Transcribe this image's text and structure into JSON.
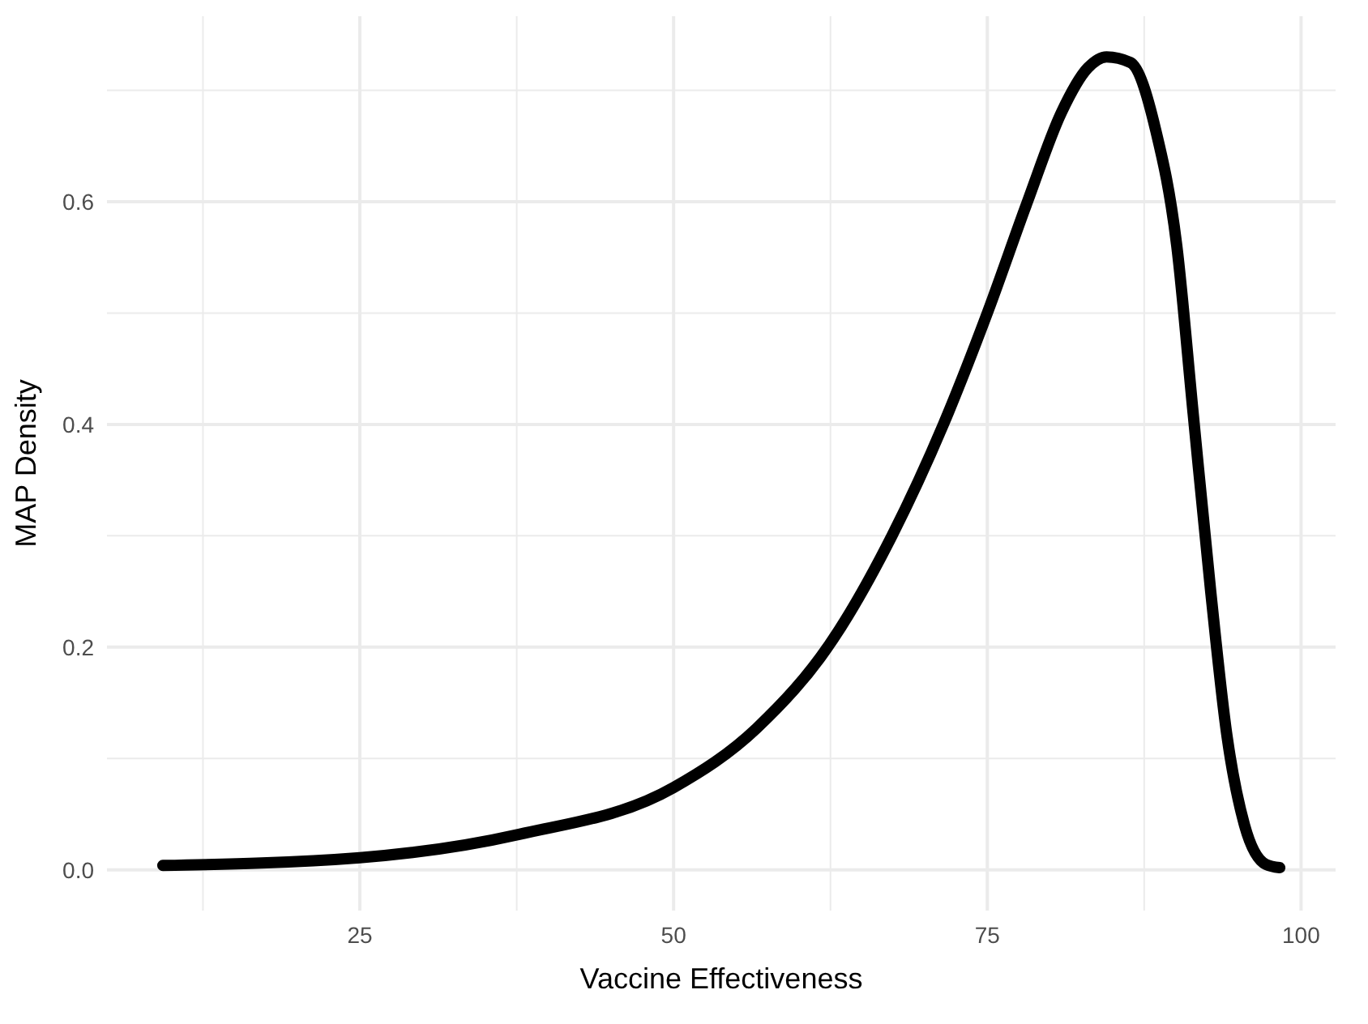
{
  "chart_data": {
    "type": "line",
    "xlabel": "Vaccine Effectiveness",
    "ylabel": "MAP Density",
    "xlim": [
      4.85,
      102.75
    ],
    "ylim": [
      -0.0365,
      0.7665
    ],
    "xticks": [
      {
        "value": 12.5,
        "label": null
      },
      25,
      {
        "value": 37.5,
        "label": null
      },
      50,
      {
        "value": 62.5,
        "label": null
      },
      75,
      {
        "value": 87.5,
        "label": null
      },
      100
    ],
    "yticks": [
      "0.0",
      {
        "value": 0.1,
        "label": null
      },
      {
        "value": 0.2,
        "label": "0.2"
      },
      {
        "value": 0.3,
        "label": null
      },
      {
        "value": 0.4,
        "label": "0.4"
      },
      {
        "value": 0.5,
        "label": null
      },
      {
        "value": 0.6,
        "label": "0.6"
      },
      {
        "value": 0.7,
        "label": null
      }
    ],
    "grid": true,
    "line_style": "solid",
    "marker": "none",
    "series": [
      {
        "color": "#000000",
        "x": [
          9.3,
          25,
          37.7,
          50,
          56.6,
          62.7,
          67.4,
          71.5,
          75,
          78.2,
          80.9,
          83,
          84.5,
          86.4,
          88.4,
          90.1,
          91.4,
          92.8,
          94.1,
          95.5,
          97.2,
          98.3
        ],
        "values": [
          0.004,
          0.011,
          0.032,
          0.074,
          0.127,
          0.207,
          0.3,
          0.4,
          0.5,
          0.6,
          0.68,
          0.72,
          0.73,
          0.725,
          0.665,
          0.56,
          0.41,
          0.25,
          0.12,
          0.04,
          0.005,
          0.002
        ]
      }
    ]
  }
}
